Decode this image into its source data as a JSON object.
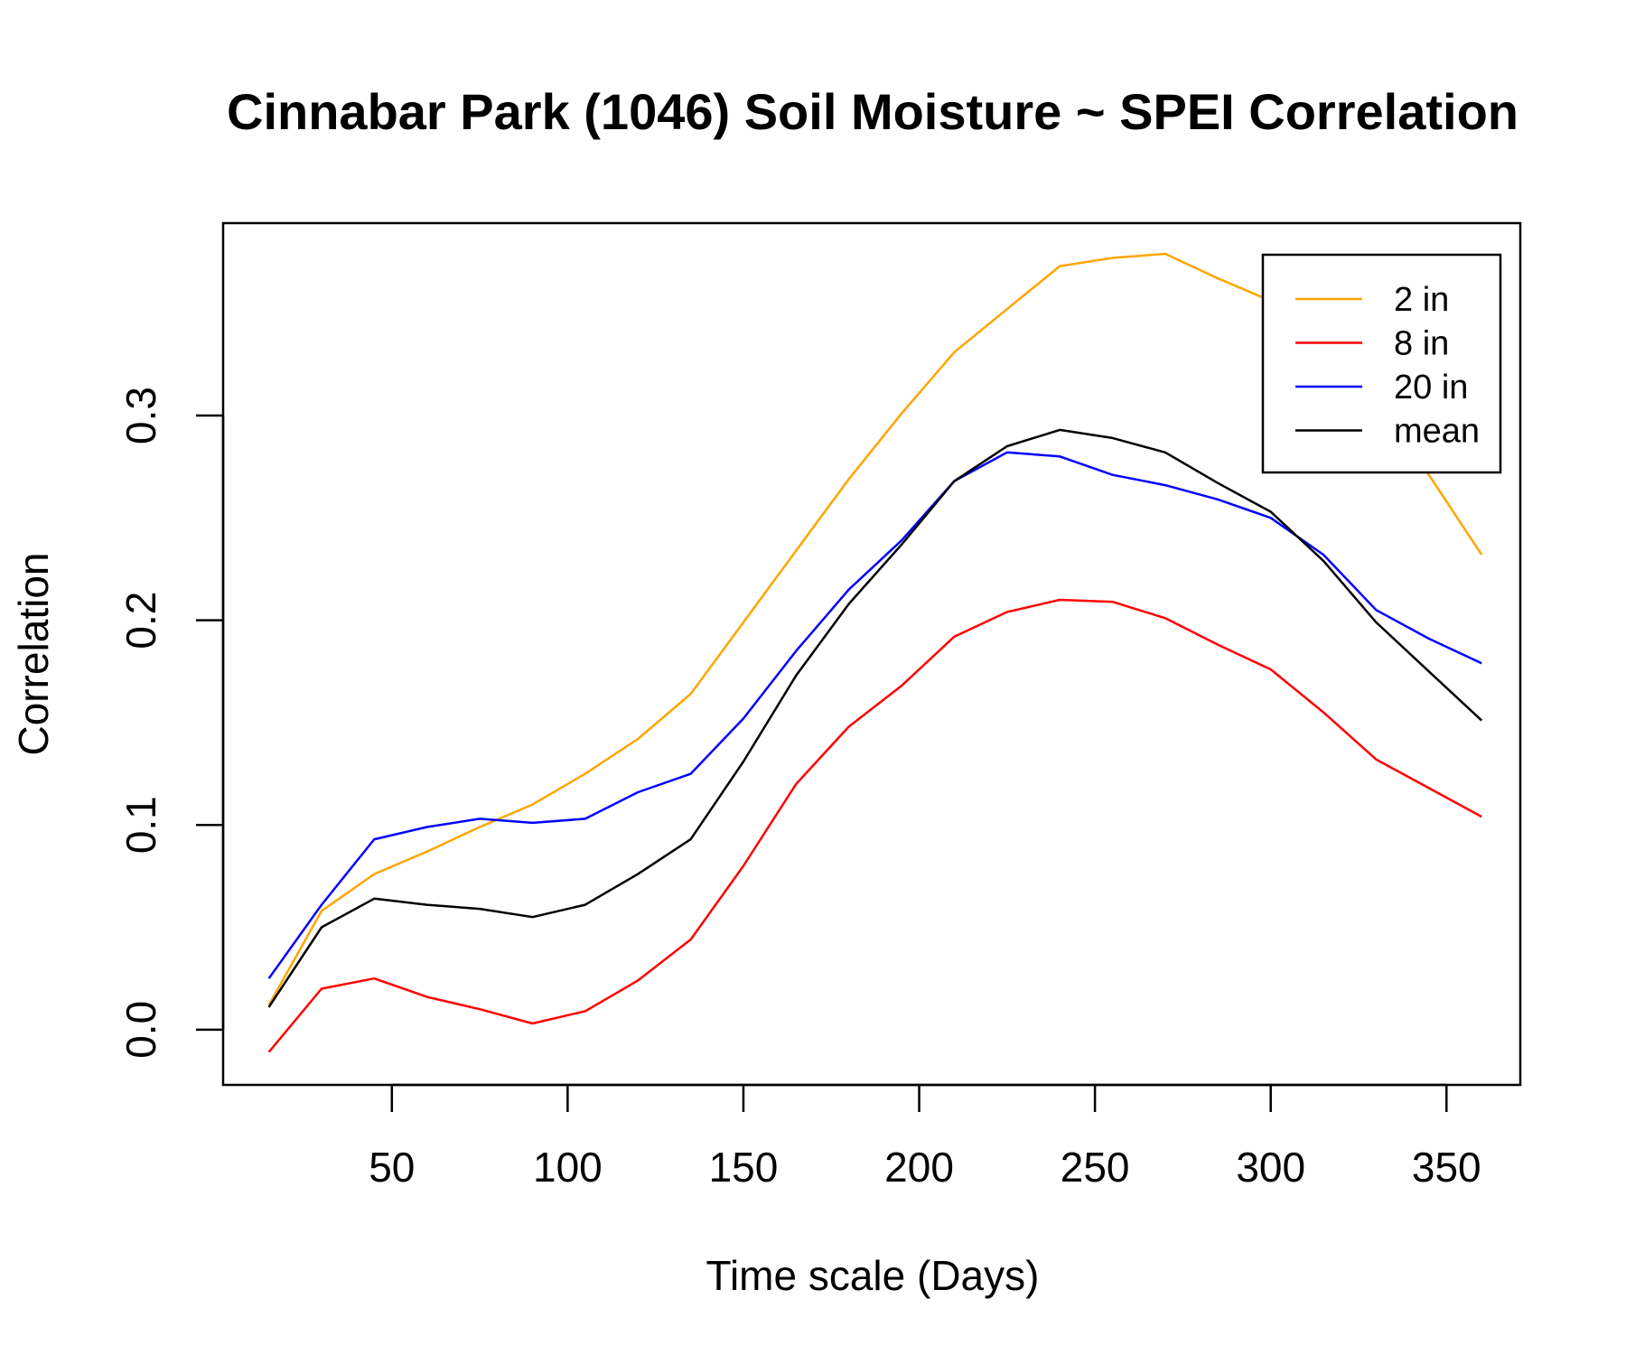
{
  "chart_data": {
    "type": "line",
    "title": "Cinnabar Park (1046) Soil Moisture ~ SPEI Correlation",
    "xlabel": "Time scale (Days)",
    "ylabel": "Correlation",
    "xlim": [
      2,
      371
    ],
    "ylim": [
      -0.027,
      0.394
    ],
    "x_ticks": [
      50,
      100,
      150,
      200,
      250,
      300,
      350
    ],
    "y_ticks": [
      0.0,
      0.1,
      0.2,
      0.3
    ],
    "x_tick_labels": [
      "50",
      "100",
      "150",
      "200",
      "250",
      "300",
      "350"
    ],
    "y_tick_labels": [
      "0.0",
      "0.1",
      "0.2",
      "0.3"
    ],
    "grid": false,
    "legend_position": "top-right",
    "x": [
      15,
      30,
      45,
      60,
      75,
      90,
      105,
      120,
      135,
      150,
      165,
      180,
      195,
      210,
      225,
      240,
      255,
      270,
      285,
      300,
      315,
      330,
      345,
      360
    ],
    "series": [
      {
        "name": "2 in",
        "color": "#FFA500",
        "values": [
          0.012,
          0.058,
          0.076,
          0.087,
          0.099,
          0.11,
          0.125,
          0.142,
          0.164,
          0.199,
          0.234,
          0.269,
          0.301,
          0.331,
          0.352,
          0.373,
          0.377,
          0.379,
          0.367,
          0.356,
          0.335,
          0.306,
          0.271,
          0.232
        ]
      },
      {
        "name": "8 in",
        "color": "#FF0000",
        "values": [
          -0.011,
          0.02,
          0.025,
          0.016,
          0.01,
          0.003,
          0.009,
          0.024,
          0.044,
          0.08,
          0.12,
          0.148,
          0.168,
          0.192,
          0.204,
          0.21,
          0.209,
          0.201,
          0.188,
          0.176,
          0.155,
          0.132,
          0.118,
          0.104
        ]
      },
      {
        "name": "20 in",
        "color": "#0000FF",
        "values": [
          0.025,
          0.061,
          0.093,
          0.099,
          0.103,
          0.101,
          0.103,
          0.116,
          0.125,
          0.152,
          0.185,
          0.215,
          0.239,
          0.268,
          0.282,
          0.28,
          0.271,
          0.266,
          0.259,
          0.25,
          0.232,
          0.205,
          0.191,
          0.179
        ]
      },
      {
        "name": "mean",
        "color": "#000000",
        "values": [
          0.011,
          0.05,
          0.064,
          0.061,
          0.059,
          0.055,
          0.061,
          0.076,
          0.093,
          0.131,
          0.173,
          0.208,
          0.237,
          0.268,
          0.285,
          0.293,
          0.289,
          0.282,
          0.267,
          0.253,
          0.229,
          0.199,
          0.175,
          0.151
        ]
      }
    ]
  }
}
